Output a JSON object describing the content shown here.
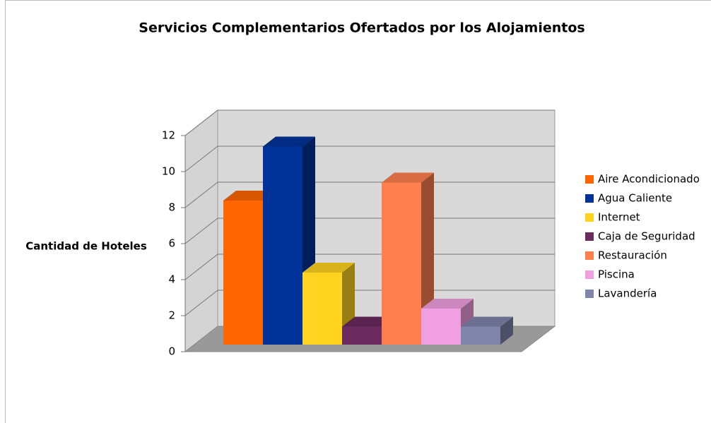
{
  "chart_data": {
    "type": "bar3d",
    "title": "Servicios Complementarios Ofertados por los Alojamientos",
    "ylabel": "Cantidad de Hoteles",
    "categories": [
      null
    ],
    "series": [
      {
        "name": "Aire Acondicionado",
        "color": "#ff6600",
        "values": [
          8
        ]
      },
      {
        "name": "Agua Caliente",
        "color": "#003399",
        "values": [
          11
        ]
      },
      {
        "name": "Internet",
        "color": "#ffd320",
        "values": [
          4
        ]
      },
      {
        "name": "Caja de Seguridad",
        "color": "#6b2b5e",
        "values": [
          1
        ]
      },
      {
        "name": "Restauración",
        "color": "#ff7f4f",
        "values": [
          9
        ]
      },
      {
        "name": "Piscina",
        "color": "#f0a0e0",
        "values": [
          2
        ]
      },
      {
        "name": "Lavandería",
        "color": "#7f84aa",
        "values": [
          1
        ]
      }
    ],
    "ylim": [
      0,
      12
    ],
    "yticks": [
      0,
      2,
      4,
      6,
      8,
      10,
      12
    ],
    "grid": true,
    "legend": "right"
  }
}
